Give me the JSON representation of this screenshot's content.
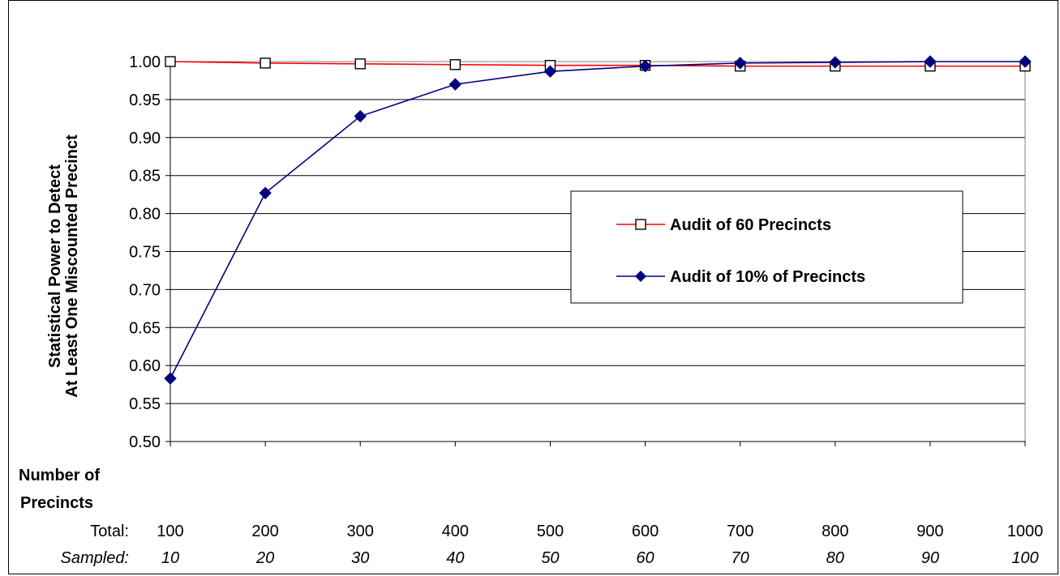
{
  "chart_data": {
    "type": "line",
    "ylabel": [
      "Statistical Power to Detect",
      "At Least One Miscounted Precinct"
    ],
    "xlabel": [
      "Number of",
      "Precincts"
    ],
    "x_rows": [
      {
        "label": "Total:",
        "values": [
          "100",
          "200",
          "300",
          "400",
          "500",
          "600",
          "700",
          "800",
          "900",
          "1000"
        ]
      },
      {
        "label": "Sampled:",
        "values": [
          "10",
          "20",
          "30",
          "40",
          "50",
          "60",
          "70",
          "80",
          "90",
          "100"
        ]
      }
    ],
    "x": [
      100,
      200,
      300,
      400,
      500,
      600,
      700,
      800,
      900,
      1000
    ],
    "ylim": [
      0.5,
      1.0
    ],
    "yticks": [
      "0.50",
      "0.55",
      "0.60",
      "0.65",
      "0.70",
      "0.75",
      "0.80",
      "0.85",
      "0.90",
      "0.95",
      "1.00"
    ],
    "grid": true,
    "legend_position": "right",
    "series": [
      {
        "name": "Audit of 60 Precincts",
        "color": "#ff0000",
        "marker": "open-square",
        "values": [
          1.0,
          0.998,
          0.997,
          0.996,
          0.995,
          0.995,
          0.994,
          0.994,
          0.994,
          0.994
        ]
      },
      {
        "name": "Audit of 10% of Precincts",
        "color": "#000080",
        "marker": "filled-diamond",
        "values": [
          0.583,
          0.827,
          0.928,
          0.97,
          0.987,
          0.994,
          0.998,
          0.999,
          1.0,
          1.0
        ]
      }
    ]
  }
}
